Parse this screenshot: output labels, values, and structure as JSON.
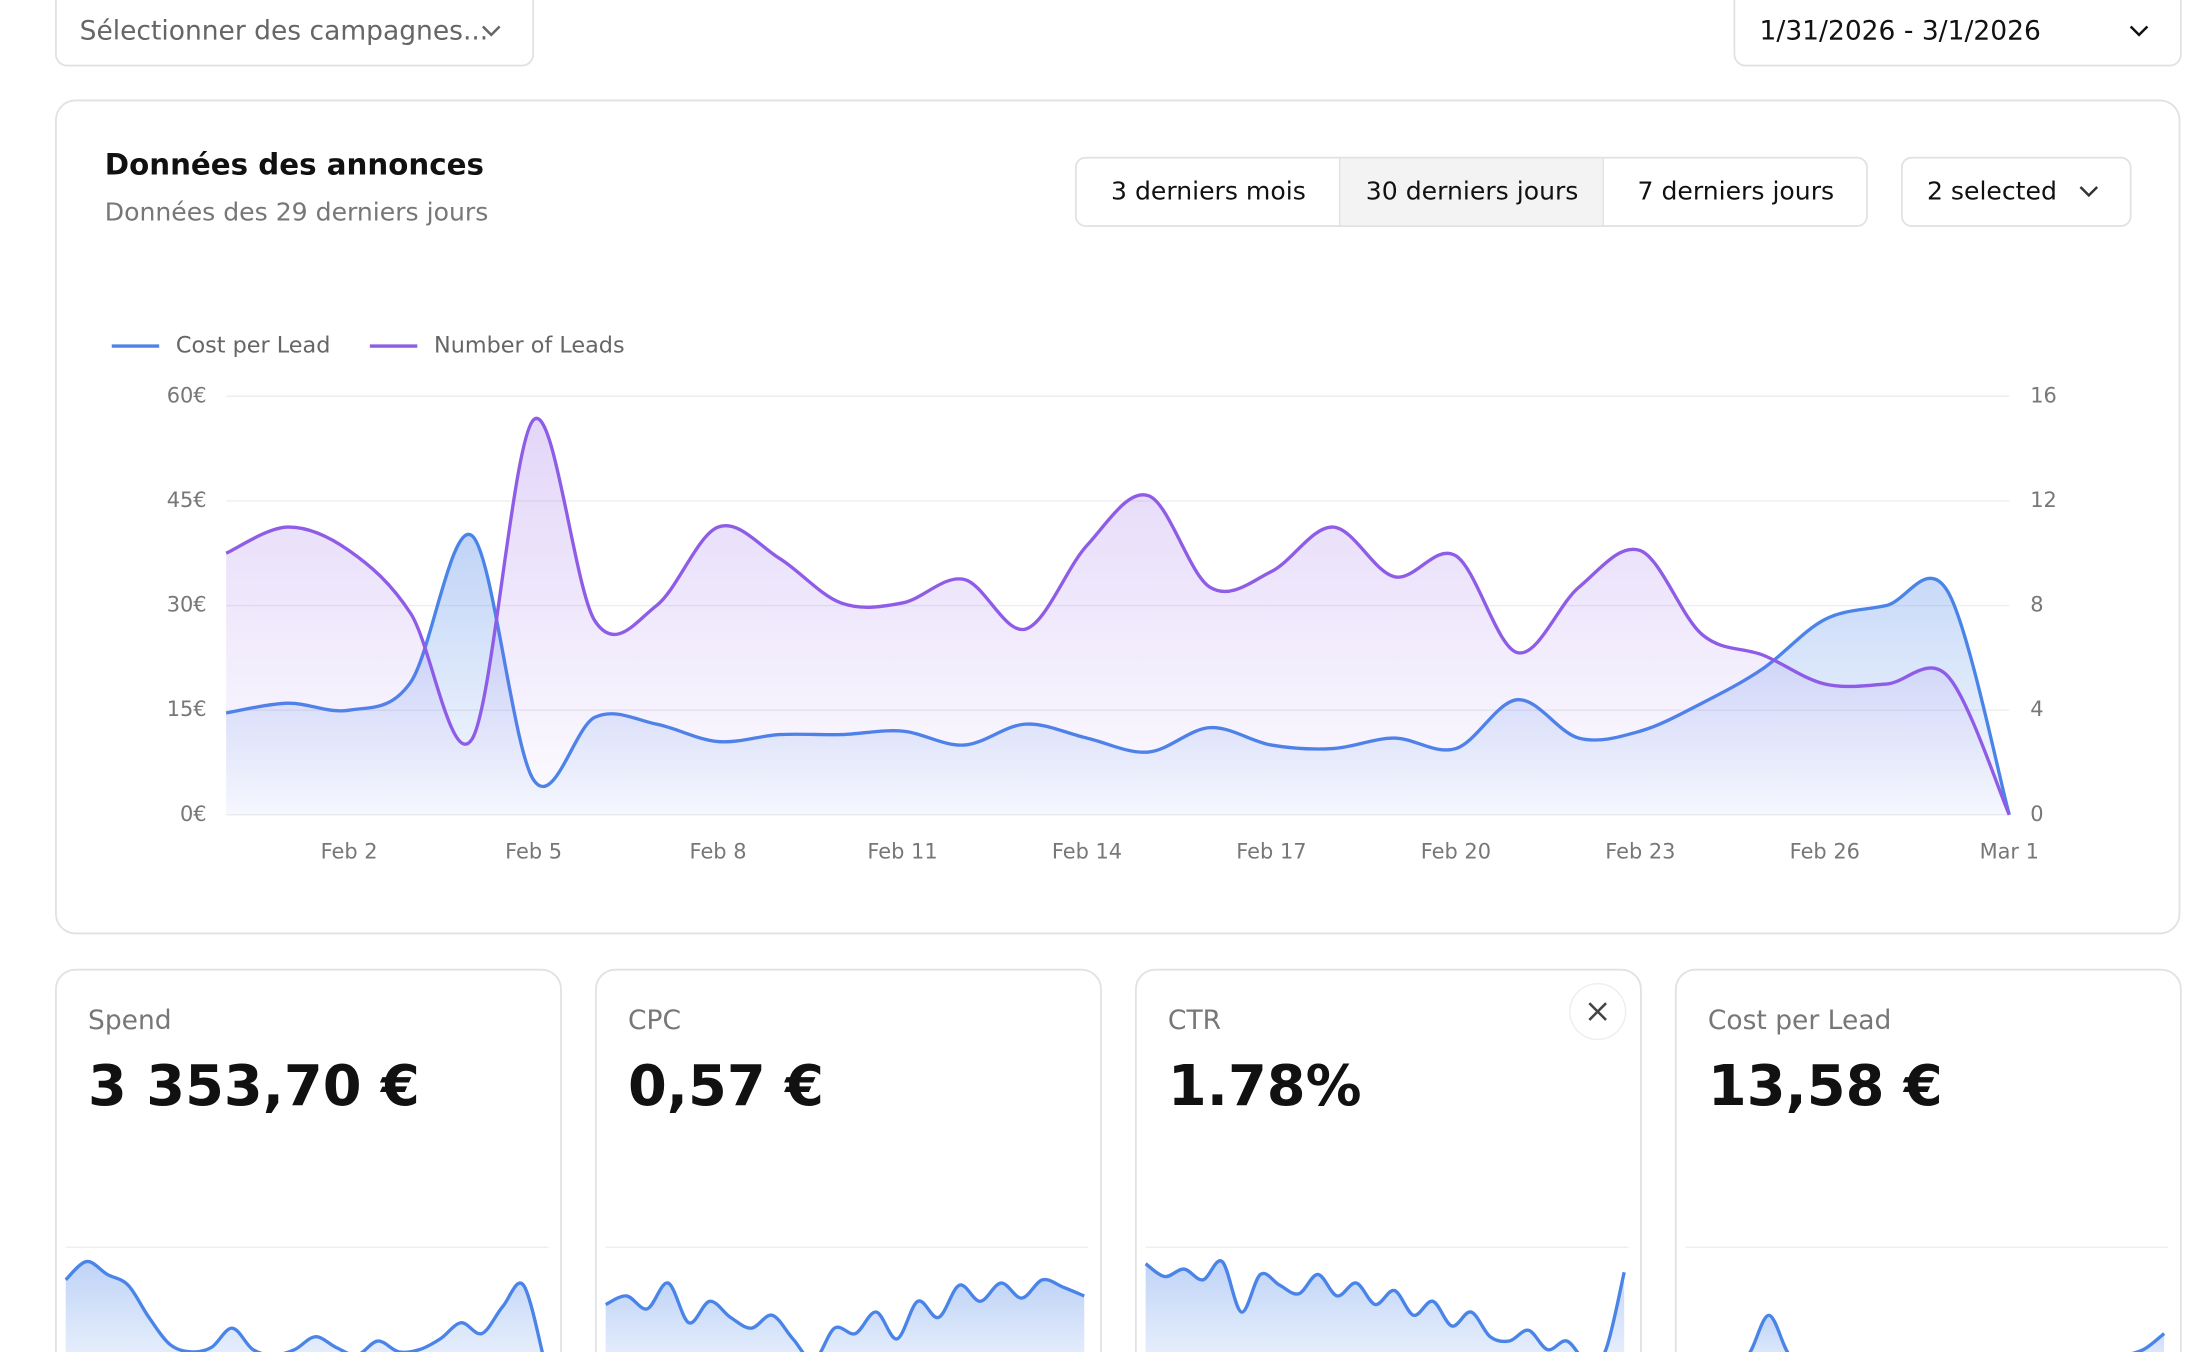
{
  "filters": {
    "campaigns": "Sélectionner des campagnes...",
    "date_range": "1/31/2026 - 3/1/2026"
  },
  "panel": {
    "title": "Données des annonces",
    "subtitle": "Données des 29 derniers jours",
    "ranges": [
      "3 derniers mois",
      "30 derniers jours",
      "7 derniers jours"
    ],
    "metrics_select": "2 selected"
  },
  "chart_data": {
    "type": "line",
    "legend": "top-left",
    "grid": true,
    "categories": [
      null,
      null,
      "Feb 2",
      null,
      null,
      "Feb 5",
      null,
      null,
      "Feb 8",
      null,
      null,
      "Feb 11",
      null,
      null,
      "Feb 14",
      null,
      null,
      "Feb 17",
      null,
      null,
      "Feb 20",
      null,
      null,
      "Feb 23",
      null,
      null,
      "Feb 26",
      null,
      null,
      "Mar 1"
    ],
    "series": [
      {
        "name": "Cost per Lead",
        "color": "#4a84e8",
        "values": [
          14.6,
          16,
          15,
          19,
          40,
          5,
          14,
          13,
          10.5,
          11.5,
          11.5,
          12,
          10,
          13,
          11,
          9,
          12.5,
          10,
          9.5,
          11,
          9.5,
          16.5,
          11,
          12,
          16,
          21,
          28,
          30,
          32,
          0
        ]
      },
      {
        "name": "Number of Leads",
        "color": "#8e5ce6",
        "axis": "y2",
        "values": [
          10,
          11,
          10.1,
          7.7,
          2.9,
          15.1,
          7.4,
          8,
          11,
          9.8,
          8.1,
          8.1,
          9,
          7.1,
          10.3,
          12.2,
          8.7,
          9.3,
          11,
          9.1,
          9.9,
          6.2,
          8.7,
          10.1,
          6.9,
          6.1,
          5,
          5,
          5.3,
          0
        ]
      }
    ],
    "ylim": [
      0,
      60
    ],
    "yticks": [
      {
        "value": 0,
        "label": "0€"
      },
      {
        "value": 15,
        "label": "15€"
      },
      {
        "value": 30,
        "label": "30€"
      },
      {
        "value": 45,
        "label": "45€"
      },
      {
        "value": 60,
        "label": "60€"
      }
    ],
    "y2lim": [
      0,
      16
    ],
    "y2ticks": [
      0,
      4,
      8,
      12,
      16
    ]
  },
  "kpis": [
    {
      "label": "Spend",
      "value": "3 353,70 €",
      "sparkline": [
        75,
        92,
        80,
        70,
        40,
        15,
        8,
        12,
        30,
        10,
        5,
        10,
        22,
        12,
        5,
        18,
        8,
        10,
        20,
        35,
        25,
        50,
        70,
        0
      ]
    },
    {
      "label": "CPC",
      "value": "0,57 €",
      "sparkline": [
        52,
        60,
        48,
        72,
        35,
        55,
        40,
        30,
        42,
        20,
        0,
        30,
        25,
        45,
        20,
        55,
        40,
        70,
        55,
        72,
        58,
        75,
        68,
        60
      ]
    },
    {
      "label": "CTR",
      "value": "1.78%",
      "sparkline": [
        90,
        78,
        85,
        75,
        92,
        45,
        80,
        70,
        62,
        80,
        60,
        72,
        52,
        65,
        42,
        55,
        32,
        45,
        22,
        18,
        28,
        10,
        18,
        0,
        8,
        82
      ]
    },
    {
      "label": "Cost per Lead",
      "value": "13,58 €",
      "sparkline": [
        5,
        5,
        5,
        5,
        42,
        5,
        5,
        5,
        5,
        5,
        5,
        5,
        5,
        5,
        5,
        5,
        5,
        5,
        5,
        5,
        5,
        5,
        10,
        25
      ]
    }
  ]
}
